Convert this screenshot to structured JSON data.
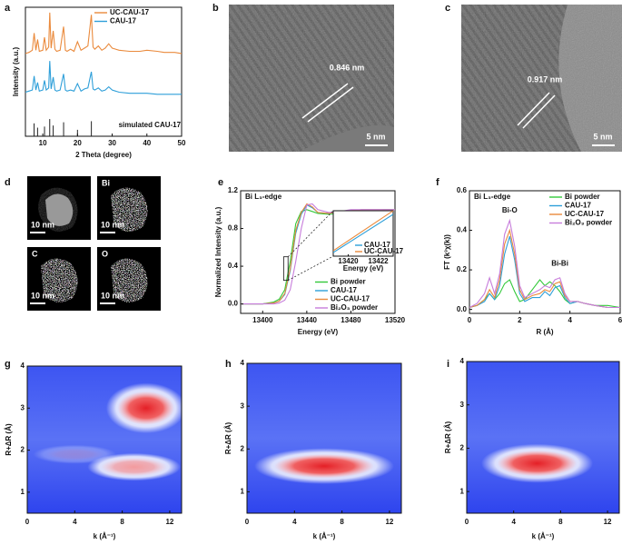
{
  "chart_data": [
    {
      "type": "line",
      "label": "a",
      "xlabel": "2 Theta (degree)",
      "ylabel": "Intensity (a.u.)",
      "xlim": [
        5,
        50
      ],
      "xticks": [
        10,
        20,
        30,
        40,
        50
      ],
      "ylim": [
        0,
        12
      ],
      "legend": "upper center",
      "x": [
        5,
        6,
        7,
        7.5,
        8,
        8.5,
        9,
        10,
        10.5,
        11,
        11.7,
        12,
        12.4,
        13,
        13.5,
        14,
        15,
        16,
        16.5,
        17,
        18,
        19,
        20,
        21,
        22,
        23,
        24,
        24.5,
        25,
        26,
        27,
        28,
        29,
        30,
        32,
        35,
        38,
        40,
        43,
        45,
        48,
        50
      ],
      "series": [
        {
          "name": "UC-CAU-17",
          "color": "#ea8a3c",
          "values": [
            7.7,
            7.8,
            8.0,
            9.6,
            8.0,
            9.0,
            7.9,
            8.0,
            9.2,
            8.0,
            8.3,
            11.5,
            8.2,
            9.8,
            8.1,
            7.9,
            8.0,
            10.2,
            8.0,
            7.9,
            8.1,
            7.9,
            8.8,
            8.0,
            8.2,
            8.4,
            11.3,
            8.3,
            8.1,
            8.4,
            8.0,
            8.2,
            8.6,
            8.2,
            8.0,
            7.9,
            7.9,
            8.0,
            7.9,
            7.8,
            7.8,
            7.7
          ]
        },
        {
          "name": "CAU-17",
          "color": "#2e9fd9",
          "values": [
            4.1,
            4.2,
            4.3,
            5.6,
            4.3,
            5.0,
            4.2,
            4.3,
            5.2,
            4.3,
            4.5,
            7.0,
            4.4,
            5.5,
            4.3,
            4.2,
            4.3,
            5.8,
            4.3,
            4.2,
            4.3,
            4.2,
            4.9,
            4.2,
            4.4,
            4.5,
            6.0,
            4.4,
            4.3,
            4.5,
            4.2,
            4.3,
            4.6,
            4.3,
            4.1,
            4.0,
            4.0,
            4.0,
            3.9,
            3.9,
            3.9,
            3.9
          ]
        }
      ],
      "reference": {
        "name": "simulated CAU-17",
        "color": "#222222",
        "x": [
          7.5,
          8.5,
          10.5,
          12,
          13,
          16,
          20,
          24
        ],
        "values": [
          1.2,
          0.8,
          0.9,
          1.6,
          1.0,
          1.3,
          0.6,
          1.4
        ]
      }
    },
    {
      "type": "line",
      "label": "e",
      "title": "Bi L₃-edge",
      "xlabel": "Energy (eV)",
      "ylabel": "Normalized Intensity (a.u.)",
      "xlim": [
        13380,
        13520
      ],
      "xticks": [
        13400,
        13440,
        13480,
        13520
      ],
      "ylim": [
        -0.1,
        1.2
      ],
      "yticks": [
        {
          "value": 0,
          "label": "0.0"
        },
        0.4,
        0.8,
        1.2
      ],
      "legend": "lower right",
      "x": [
        13380,
        13400,
        13410,
        13415,
        13420,
        13425,
        13430,
        13435,
        13440,
        13445,
        13450,
        13460,
        13470,
        13480,
        13490,
        13500,
        13510,
        13520
      ],
      "series": [
        {
          "name": "Bi powder",
          "color": "#33c93a",
          "values": [
            0,
            0,
            0.02,
            0.05,
            0.15,
            0.45,
            0.85,
            0.98,
            1.0,
            0.98,
            0.96,
            0.95,
            0.96,
            0.97,
            0.98,
            0.99,
            1.0,
            1.0
          ]
        },
        {
          "name": "CAU-17",
          "color": "#2e9fd9",
          "values": [
            0,
            0,
            0.01,
            0.03,
            0.1,
            0.35,
            0.75,
            0.95,
            1.05,
            1.02,
            0.97,
            0.96,
            0.98,
            0.99,
            1.0,
            1.0,
            1.0,
            1.0
          ]
        },
        {
          "name": "UC-CAU-17",
          "color": "#ea8a3c",
          "values": [
            0,
            0,
            0.01,
            0.03,
            0.11,
            0.37,
            0.78,
            0.97,
            1.06,
            1.03,
            0.97,
            0.96,
            0.98,
            0.99,
            1.0,
            1.0,
            1.0,
            1.0
          ]
        },
        {
          "name": "Bi₂O₃  powder",
          "color": "#c77ddb",
          "values": [
            0,
            0,
            0,
            0.01,
            0.04,
            0.15,
            0.45,
            0.8,
            1.05,
            1.06,
            1.0,
            0.97,
            0.98,
            1.0,
            1.0,
            1.0,
            1.0,
            1.0
          ]
        }
      ],
      "inset": {
        "type": "line",
        "xlabel": "Energy (eV)",
        "xlim": [
          13419,
          13423
        ],
        "xticks": [
          13420,
          13422
        ],
        "ylim": [
          0.25,
          0.5
        ],
        "x": [
          13419,
          13423
        ],
        "series": [
          {
            "name": "CAU-17",
            "color": "#2e9fd9",
            "values": [
              0.27,
              0.48
            ]
          },
          {
            "name": "UC-CAU-17",
            "color": "#ea8a3c",
            "values": [
              0.28,
              0.5
            ]
          }
        ]
      }
    },
    {
      "type": "line",
      "label": "f",
      "title": "Bi L₃-edge",
      "xlabel": "R (Å)",
      "ylabel": "FT (k³χ(k))",
      "xlim": [
        0,
        6
      ],
      "xticks": [
        0,
        2,
        4,
        6
      ],
      "ylim": [
        -0.02,
        0.6
      ],
      "yticks": [
        {
          "value": 0,
          "label": "0.0"
        },
        0.2,
        0.4,
        0.6
      ],
      "legend": "upper right",
      "annotations": [
        "Bi-O",
        "Bi-Bi"
      ],
      "x": [
        0,
        0.3,
        0.6,
        0.8,
        1.0,
        1.2,
        1.4,
        1.6,
        1.8,
        2.0,
        2.2,
        2.5,
        2.8,
        3.0,
        3.2,
        3.4,
        3.6,
        3.8,
        4.0,
        4.3,
        4.6,
        5.0,
        5.5,
        6.0
      ],
      "series": [
        {
          "name": "Bi powder",
          "color": "#33c93a",
          "values": [
            0.01,
            0.02,
            0.05,
            0.08,
            0.05,
            0.08,
            0.13,
            0.15,
            0.09,
            0.04,
            0.05,
            0.1,
            0.15,
            0.12,
            0.14,
            0.12,
            0.09,
            0.05,
            0.03,
            0.04,
            0.03,
            0.02,
            0.02,
            0.01
          ]
        },
        {
          "name": "CAU-17",
          "color": "#2e9fd9",
          "values": [
            0.01,
            0.02,
            0.04,
            0.08,
            0.05,
            0.12,
            0.28,
            0.37,
            0.25,
            0.08,
            0.04,
            0.06,
            0.06,
            0.09,
            0.07,
            0.11,
            0.12,
            0.06,
            0.03,
            0.04,
            0.03,
            0.02,
            0.01,
            0.01
          ]
        },
        {
          "name": "UC-CAU-17",
          "color": "#ea8a3c",
          "values": [
            0.01,
            0.02,
            0.05,
            0.1,
            0.06,
            0.15,
            0.33,
            0.4,
            0.28,
            0.1,
            0.05,
            0.07,
            0.08,
            0.1,
            0.09,
            0.13,
            0.14,
            0.07,
            0.04,
            0.04,
            0.03,
            0.02,
            0.01,
            0.01
          ]
        },
        {
          "name": "Bi₂O₃  powder",
          "color": "#c77ddb",
          "values": [
            0.01,
            0.03,
            0.08,
            0.16,
            0.08,
            0.18,
            0.38,
            0.45,
            0.32,
            0.12,
            0.06,
            0.08,
            0.1,
            0.12,
            0.11,
            0.15,
            0.16,
            0.08,
            0.04,
            0.04,
            0.03,
            0.02,
            0.01,
            0.01
          ]
        }
      ]
    },
    {
      "type": "contour",
      "label": "g",
      "xlabel": "k (Å⁻¹)",
      "ylabel": "R+ΔR (Å)",
      "xlim": [
        0,
        13
      ],
      "xticks": [
        0,
        4,
        8,
        12
      ],
      "ylim": [
        0.5,
        4
      ],
      "yticks": [
        1,
        2,
        3,
        4
      ],
      "peaks": [
        {
          "x": 10,
          "y": 3,
          "x_spread": 2.4,
          "y_spread": 0.4,
          "intensity": 1
        },
        {
          "x": 9,
          "y": 1.6,
          "x_spread": 2.8,
          "y_spread": 0.22,
          "intensity": 0.45
        },
        {
          "x": 4,
          "y": 1.9,
          "x_spread": 2.5,
          "y_spread": 0.15,
          "intensity": 0.12
        }
      ]
    },
    {
      "type": "contour",
      "label": "h",
      "xlabel": "k (Å⁻¹)",
      "ylabel": "R+ΔR (Å)",
      "xlim": [
        0,
        13
      ],
      "xticks": [
        0,
        4,
        8,
        12
      ],
      "ylim": [
        0.5,
        4
      ],
      "yticks": [
        1,
        2,
        3,
        4
      ],
      "peaks": [
        {
          "x": 6.5,
          "y": 1.6,
          "x_spread": 4.2,
          "y_spread": 0.28,
          "intensity": 1
        }
      ]
    },
    {
      "type": "contour",
      "label": "i",
      "xlabel": "k (Å⁻¹)",
      "ylabel": "R+ΔR (Å)",
      "xlim": [
        0,
        13
      ],
      "xticks": [
        0,
        4,
        8,
        12
      ],
      "ylim": [
        0.5,
        4
      ],
      "yticks": [
        1,
        2,
        3,
        4
      ],
      "peaks": [
        {
          "x": 6,
          "y": 1.65,
          "x_spread": 3.4,
          "y_spread": 0.3,
          "intensity": 1
        }
      ]
    }
  ],
  "images": [
    {
      "label": "b",
      "spacing": "0.846 nm",
      "scale_bar": "5 nm"
    },
    {
      "label": "c",
      "spacing": "0.917 nm",
      "scale_bar": "5 nm"
    }
  ],
  "maps": {
    "label": "d",
    "tiles": [
      {
        "scale_bar": "10 nm"
      },
      {
        "element": "Bi",
        "scale_bar": "10 nm"
      },
      {
        "element": "C",
        "scale_bar": "10 nm"
      },
      {
        "element": "O",
        "scale_bar": "10 nm"
      }
    ]
  }
}
